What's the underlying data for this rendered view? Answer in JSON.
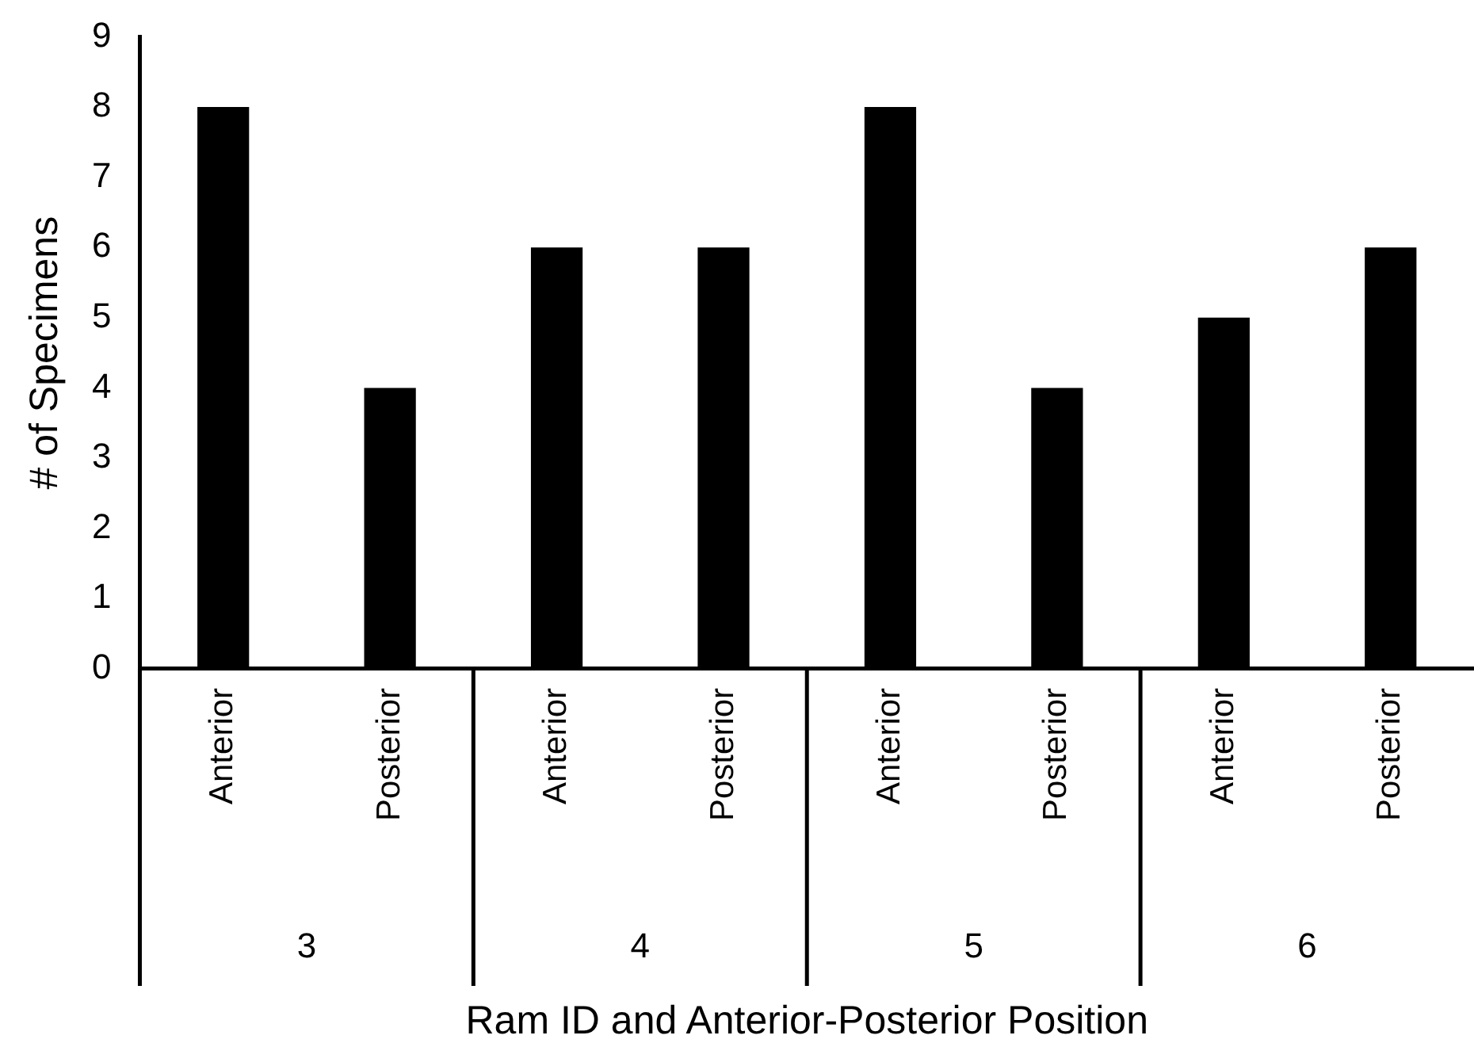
{
  "chart_data": {
    "type": "bar",
    "xlabel": "Ram ID and Anterior-Posterior Position",
    "ylabel": "# of Specimens",
    "categories": [
      "Anterior",
      "Posterior",
      "Anterior",
      "Posterior",
      "Anterior",
      "Posterior",
      "Anterior",
      "Posterior"
    ],
    "values": [
      8,
      4,
      6,
      6,
      8,
      4,
      5,
      6
    ],
    "color": "#000000",
    "ylim": [
      0,
      9
    ],
    "yticks": [
      0,
      1,
      2,
      3,
      4,
      5,
      6,
      7,
      8,
      9
    ],
    "grid": false,
    "annotations": [
      "3",
      "4",
      "5",
      "6"
    ]
  }
}
